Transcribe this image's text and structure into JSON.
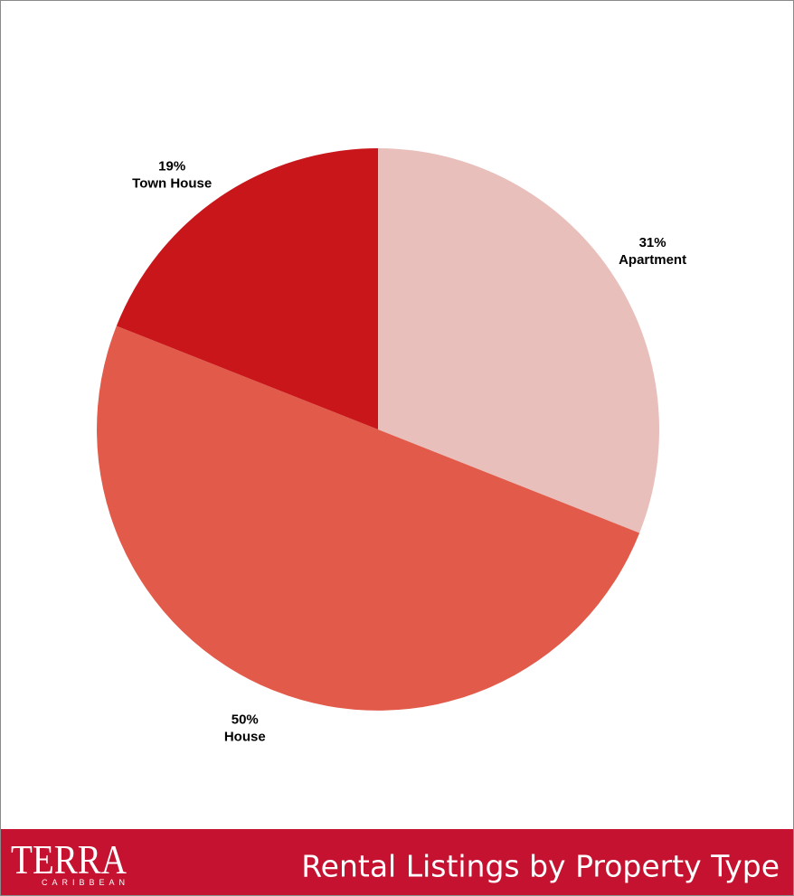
{
  "chart_data": {
    "type": "pie",
    "title": "Rental Listings by Property Type",
    "categories": [
      "Apartment",
      "House",
      "Town House"
    ],
    "values": [
      31,
      50,
      19
    ],
    "value_labels": [
      "31%",
      "50%",
      "19%"
    ],
    "colors": [
      "#e9bfbc",
      "#e25a4a",
      "#c8161b"
    ]
  },
  "logo": {
    "name": "TERRA",
    "tagline": "CARIBBEAN"
  }
}
